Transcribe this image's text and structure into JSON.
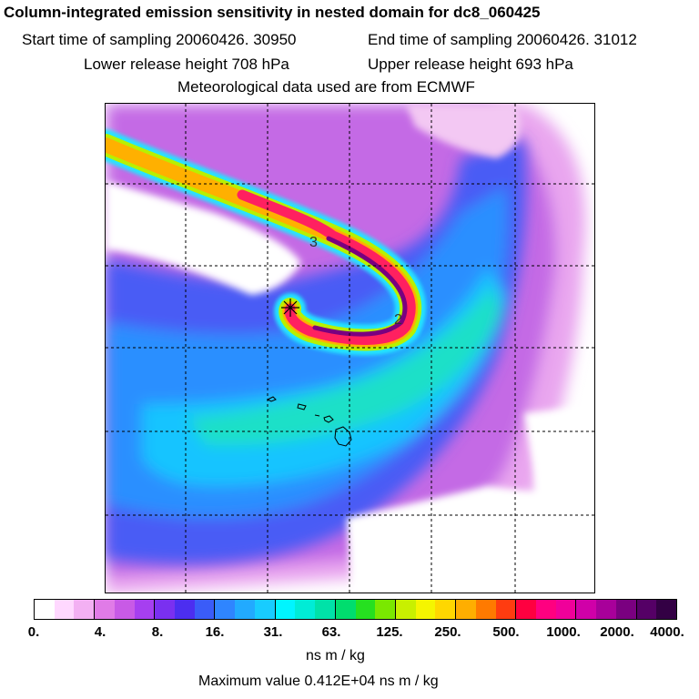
{
  "header": {
    "title": "Column-integrated emission sensitivity in nested domain for dc8_060425",
    "start_time": "Start time of sampling 20060426. 30950",
    "end_time": "End time of sampling 20060426. 31012",
    "lower_height": "Lower release height  708 hPa",
    "upper_height": "Upper release height  693 hPa",
    "met_data": "Meteorological data used are from ECMWF"
  },
  "map": {
    "trajectory_labels": [
      "3",
      "2"
    ],
    "release_marker": "release-point-star-icon",
    "grid": true
  },
  "legend": {
    "ticks": [
      "0.",
      "4.",
      "8.",
      "16.",
      "31.",
      "63.",
      "125.",
      "250.",
      "500.",
      "1000.",
      "2000.",
      "4000."
    ],
    "colors": [
      "#ffffff",
      "#ffd8ff",
      "#f3b0f3",
      "#e07be7",
      "#c85ae6",
      "#a63ff0",
      "#7a30f0",
      "#4c2ef0",
      "#3a5cf8",
      "#2f85ff",
      "#22aaff",
      "#18ccff",
      "#00f5ff",
      "#00ecd6",
      "#00e2a8",
      "#00dd6e",
      "#26e020",
      "#7ae800",
      "#c8f000",
      "#f5f500",
      "#ffd700",
      "#ffae00",
      "#ff7a00",
      "#ff3c10",
      "#ff0040",
      "#ff0080",
      "#f0009a",
      "#d000a8",
      "#a8009a",
      "#7a0080",
      "#550066",
      "#330044"
    ],
    "units": "ns m / kg",
    "max_value": "Maximum value  0.412E+04 ns m / kg"
  }
}
